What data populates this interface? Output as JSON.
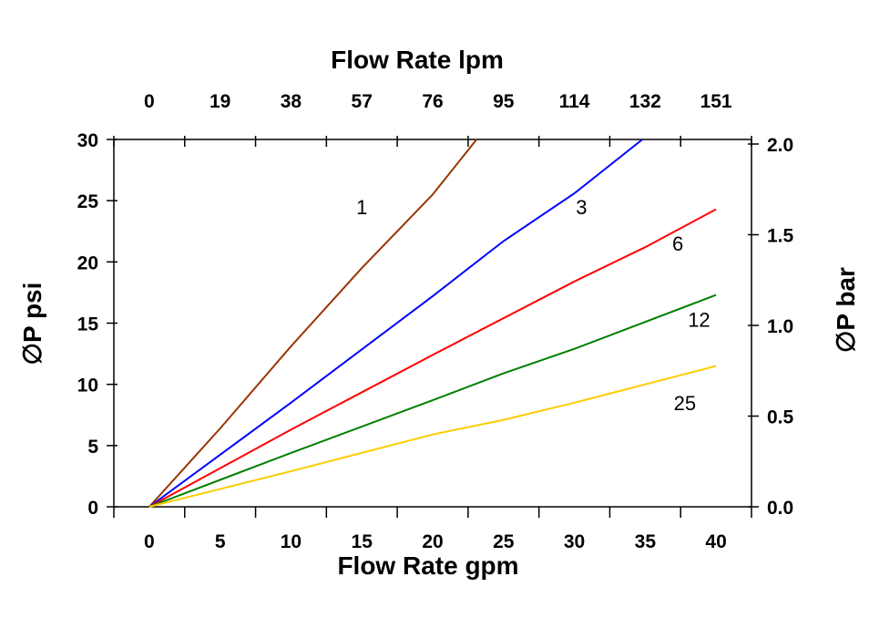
{
  "chart_data": {
    "type": "line",
    "xlabel": "Flow Rate gpm",
    "ylabel": "∅P psi",
    "x2label": "Flow Rate lpm",
    "y2label": "∅P bar",
    "xlim": [
      -2.5,
      42.5
    ],
    "ylim": [
      0,
      30
    ],
    "y2lim": [
      0,
      2.0
    ],
    "grid": false,
    "x_ticks": [
      0,
      5,
      10,
      15,
      20,
      25,
      30,
      35,
      40
    ],
    "x_tick_labels": [
      "0",
      "5",
      "10",
      "15",
      "20",
      "25",
      "30",
      "35",
      "40"
    ],
    "x2_tick_labels": [
      "0",
      "19",
      "38",
      "57",
      "76",
      "95",
      "114",
      "132",
      "151"
    ],
    "y_ticks": [
      0,
      5,
      10,
      15,
      20,
      25,
      30
    ],
    "y_tick_labels": [
      "0",
      "5",
      "10",
      "15",
      "20",
      "25",
      "30"
    ],
    "y2_ticks": [
      0.0,
      0.5,
      1.0,
      1.5,
      2.0
    ],
    "y2_tick_labels": [
      "0.0",
      "0.5",
      "1.0",
      "1.5",
      "2.0"
    ],
    "series": [
      {
        "name": "1",
        "color": "#993300",
        "label_at": [
          15,
          24.5
        ],
        "x": [
          0,
          5,
          10,
          15,
          20,
          23.1
        ],
        "y": [
          0,
          6.4,
          13.1,
          19.5,
          25.5,
          30
        ]
      },
      {
        "name": "3",
        "color": "#0000ff",
        "label_at": [
          30.5,
          24.5
        ],
        "x": [
          0,
          10,
          20,
          25,
          30,
          34.8
        ],
        "y": [
          0,
          8.5,
          17.2,
          21.7,
          25.6,
          30
        ]
      },
      {
        "name": "6",
        "color": "#ff0000",
        "label_at": [
          37.3,
          21.5
        ],
        "x": [
          0,
          10,
          20,
          30,
          35,
          40
        ],
        "y": [
          0,
          6.3,
          12.4,
          18.4,
          21.2,
          24.3
        ]
      },
      {
        "name": "12",
        "color": "#008000",
        "label_at": [
          38.8,
          15.3
        ],
        "x": [
          0,
          10,
          20,
          25,
          30,
          40
        ],
        "y": [
          0,
          4.4,
          8.7,
          10.9,
          12.9,
          17.3
        ]
      },
      {
        "name": "25",
        "color": "#ffcc00",
        "label_at": [
          37.8,
          8.5
        ],
        "x": [
          0,
          10,
          20,
          25,
          30,
          40
        ],
        "y": [
          0,
          2.9,
          5.9,
          7.1,
          8.5,
          11.5
        ]
      }
    ]
  }
}
